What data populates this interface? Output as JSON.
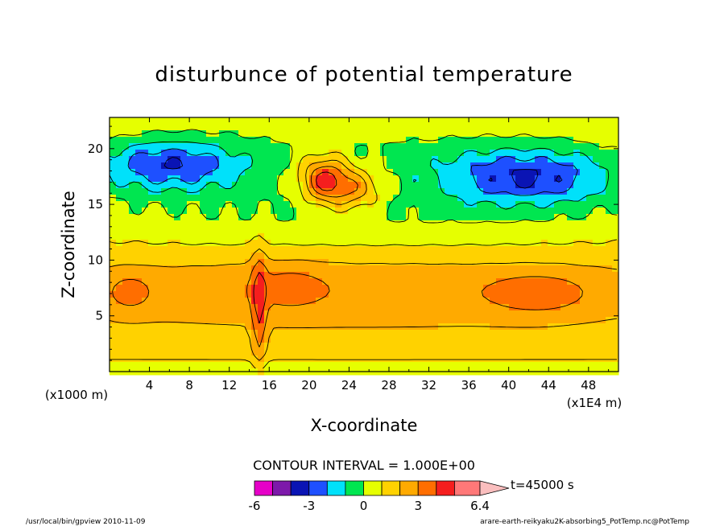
{
  "chart_data": {
    "type": "heatmap",
    "title": "disturbunce of potential temperature",
    "xlabel": "X-coordinate",
    "ylabel": "Z-coordinate",
    "x_unit_left": "(x1000 m)",
    "x_unit_right": "(x1E4 m)",
    "xlim": [
      0,
      51
    ],
    "ylim": [
      0,
      22.8
    ],
    "xticks": [
      4,
      8,
      12,
      16,
      20,
      24,
      28,
      32,
      36,
      40,
      44,
      48
    ],
    "yticks": [
      5,
      10,
      15,
      20
    ],
    "contour_interval_label": "CONTOUR INTERVAL = 1.000E+00",
    "time_label": "t=45000 s",
    "colorbar": {
      "levels": [
        -6,
        -5,
        -4,
        -3,
        -2,
        -1,
        0,
        1,
        2,
        3,
        4,
        5,
        6.4
      ],
      "tick_labels": [
        "-6",
        "-3",
        "0",
        "3",
        "6.4"
      ],
      "tick_values": [
        -6,
        -3,
        0,
        3,
        6.4
      ],
      "colors": [
        "#e600c8",
        "#7d19aa",
        "#0a14b4",
        "#1e50ff",
        "#00e1fa",
        "#00e650",
        "#e6ff00",
        "#ffd200",
        "#ffaa00",
        "#ff6e00",
        "#f51e1e",
        "#ff7878",
        "#fabebe"
      ],
      "extends_max": true
    },
    "approx_field": {
      "background_value": 1.5,
      "features": [
        {
          "x": 25.5,
          "z": 7.3,
          "sx": 27,
          "sz": 2.4,
          "value": 1.3
        },
        {
          "x": 2,
          "z": 7.1,
          "sx": 1.6,
          "sz": 1.2,
          "value": 1.2
        },
        {
          "x": 18,
          "z": 7.6,
          "sx": 2.5,
          "sz": 1.4,
          "value": 0.9
        },
        {
          "x": 43,
          "z": 7.0,
          "sx": 3.5,
          "sz": 1.3,
          "value": 1.3
        },
        {
          "x": 25.5,
          "z": 13.5,
          "sx": 30,
          "sz": 2.2,
          "value": -1.1
        },
        {
          "x": 25.5,
          "z": 19,
          "sx": 30,
          "sz": 3.5,
          "value": -1.6
        },
        {
          "x": 6,
          "z": 18.5,
          "sx": 5,
          "sz": 1.6,
          "value": -3.2
        },
        {
          "x": 42,
          "z": 17.5,
          "sx": 6,
          "sz": 1.7,
          "value": -3.3
        },
        {
          "x": 21.5,
          "z": 17.5,
          "sx": 1.8,
          "sz": 1.4,
          "value": 3.5
        },
        {
          "x": 24,
          "z": 16.3,
          "sx": 2.5,
          "sz": 1.3,
          "value": 2.6
        },
        {
          "x": 15,
          "z": 5.5,
          "sx": 0.5,
          "sz": 4.0,
          "value": 2.0
        }
      ]
    }
  },
  "footer": {
    "left": "/usr/local/bin/gpview   2010-11-09",
    "right": "arare-earth-reikyaku2K-absorbing5_PotTemp.nc@PotTemp"
  }
}
